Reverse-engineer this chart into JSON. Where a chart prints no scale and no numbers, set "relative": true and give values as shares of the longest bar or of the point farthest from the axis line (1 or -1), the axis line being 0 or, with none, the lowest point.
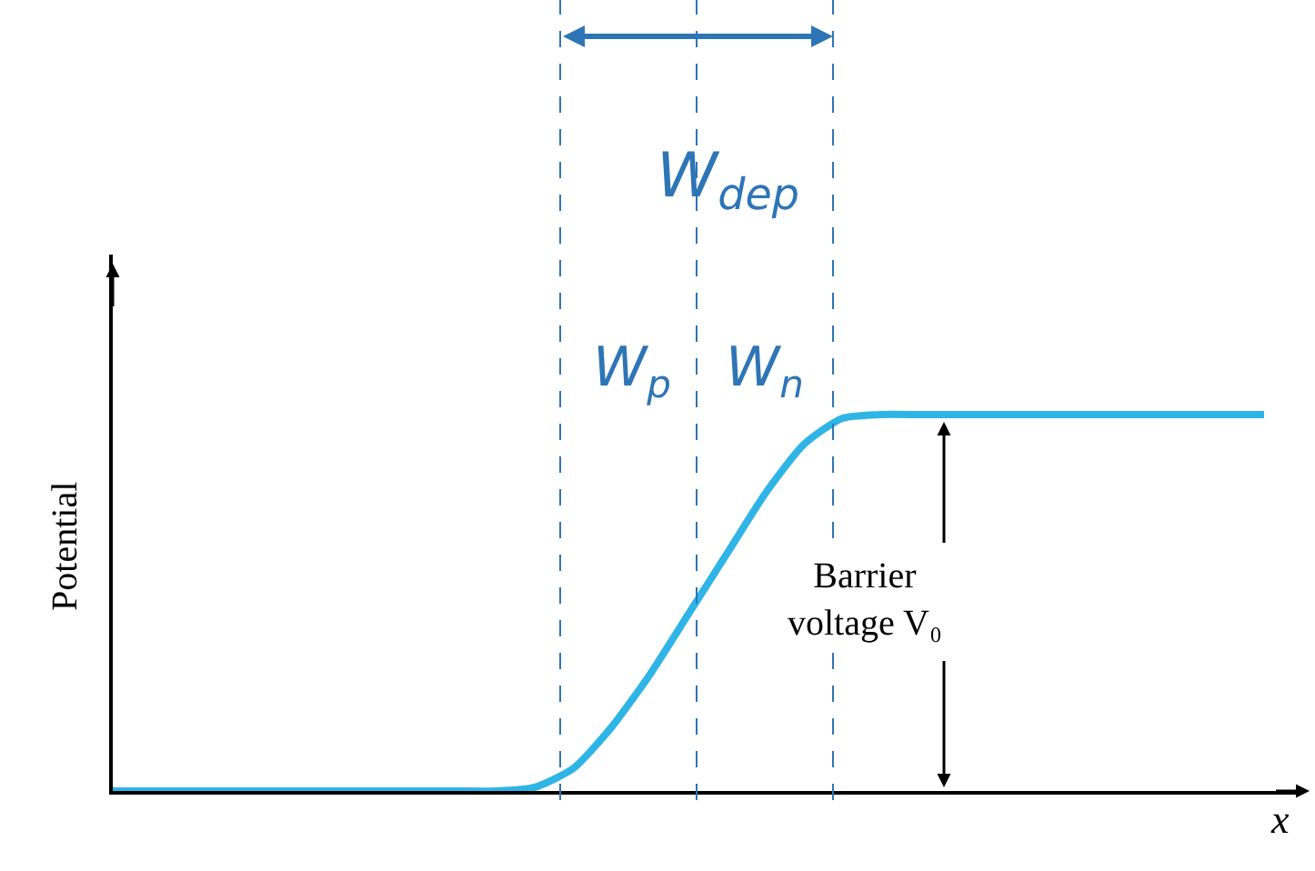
{
  "chart_data": {
    "type": "line",
    "relative": true,
    "ylabel": "Potential",
    "xlabel": "x",
    "categories": [
      null,
      null,
      null,
      null,
      null,
      null,
      null,
      null,
      null,
      null,
      null,
      null,
      null,
      null,
      null,
      null,
      null,
      null,
      null,
      null,
      null,
      null,
      null,
      null,
      null,
      null,
      null,
      null,
      null,
      null,
      null
    ],
    "series": [
      {
        "color": "#2fb4e6",
        "values": [
          0,
          0,
          0,
          0,
          0,
          0,
          0,
          0,
          0,
          0,
          0,
          0.01,
          0.06,
          0.17,
          0.31,
          0.47,
          0.63,
          0.79,
          0.92,
          0.99,
          1,
          1,
          1,
          1,
          1,
          1,
          1,
          1,
          1,
          1,
          1
        ]
      }
    ],
    "annotations": [
      "W$_{dep}$",
      "W$_{p}$",
      "W$_{n}$",
      "Barrier\nvoltage V₀"
    ],
    "legend": false,
    "marker": "none",
    "line_style": "solid",
    "tick_labels": false
  }
}
